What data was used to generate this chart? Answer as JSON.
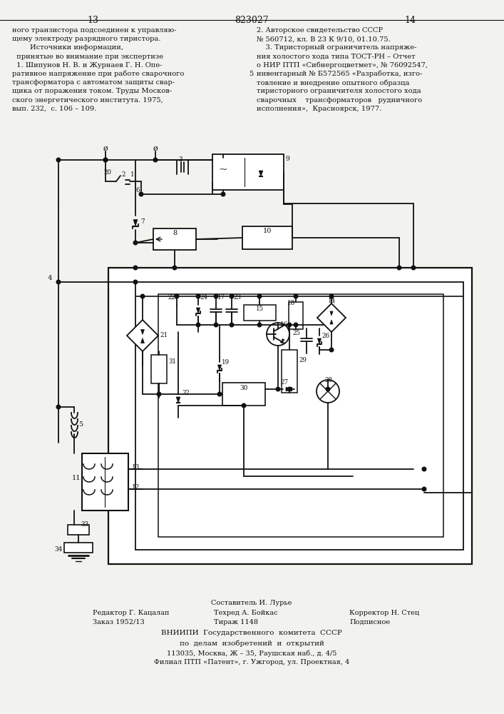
{
  "page_number_left": "13",
  "page_number_center": "823027",
  "page_number_right": "14",
  "top_text_left": [
    "ного транзистора подсоединен к управляю-",
    "щему электроду разрядного тиристора.",
    "        Источники информации,",
    "  принятые во внимание при экспертизе",
    "  1. Шипунов Н. В. и Журнаев Г. Н. Опе-",
    "ративное напряжение при работе сварочного",
    "трансформатора с автоматом защиты свар-",
    "щика от поражения током. Труды Москов-",
    "ского энергетического института. 1975,",
    "вып. 232,  с. 106 – 109."
  ],
  "top_text_right": [
    "2. Авторское свидетельство СССР",
    "№ 560712, кл. В 23 К 9/10, 01.10.75.",
    "    3. Тиристорный ограничитель напряже-",
    "ния холостого хода типа ТОСТ-РН – Отчет",
    "о НИР ПТП «Сибнергоцветмет», № 76092547,",
    "инвентарный № Б572565 «Разработка, изго-",
    "товление и внедрение опытного образца",
    "тиристорного ограничителя холостого хода",
    "сварочных    трансформаторов   рудничного",
    "исполнения»,  Красноярск, 1977."
  ],
  "bg_color": "#f2f2ee",
  "line_color": "#111111",
  "text_color": "#111111"
}
